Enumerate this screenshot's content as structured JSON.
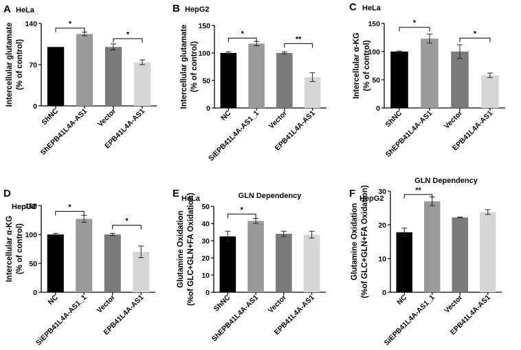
{
  "chart_data": [
    {
      "panel": "A",
      "cell": "HeLa",
      "type": "bar",
      "title": "",
      "ylabel": [
        "Intercellular glutamate",
        "(% of control)"
      ],
      "ylim": [
        0,
        140
      ],
      "yticks": [
        0,
        70,
        140
      ],
      "categories": [
        "ShNC",
        "ShEPB41L4A-AS1",
        "Vector",
        "EPB41L4A-AS1"
      ],
      "values": [
        100,
        122,
        100,
        74
      ],
      "errors": [
        0,
        3,
        5,
        4
      ],
      "colors": [
        "#000000",
        "#9a9a9a",
        "#7a7a7a",
        "#d6d6d6"
      ],
      "significance": [
        {
          "from": 0,
          "to": 1,
          "label": "*",
          "y": 132
        },
        {
          "from": 2,
          "to": 3,
          "label": "*",
          "y": 114
        }
      ]
    },
    {
      "panel": "B",
      "cell": "HepG2",
      "type": "bar",
      "title": "",
      "ylabel": [
        "Intercellular glutamate",
        "(% of control)"
      ],
      "ylim": [
        0,
        150
      ],
      "yticks": [
        0,
        50,
        100,
        150
      ],
      "categories": [
        "NC",
        "SiEPB41L4A-AS1_1",
        "Vector",
        "EPB41L4A-AS1"
      ],
      "values": [
        100,
        117,
        100,
        56
      ],
      "errors": [
        2,
        4,
        2,
        8
      ],
      "colors": [
        "#000000",
        "#9a9a9a",
        "#7a7a7a",
        "#d6d6d6"
      ],
      "significance": [
        {
          "from": 0,
          "to": 1,
          "label": "*",
          "y": 127
        },
        {
          "from": 2,
          "to": 3,
          "label": "**",
          "y": 117
        }
      ]
    },
    {
      "panel": "C",
      "cell": "HeLa",
      "type": "bar",
      "title": "",
      "ylabel": [
        "Intercellular α-KG",
        "(% of control)"
      ],
      "ylim": [
        0,
        150
      ],
      "yticks": [
        0,
        50,
        100,
        150
      ],
      "categories": [
        "ShNC",
        "ShEPB41L4A-AS1",
        "Vector",
        "EPB41L4A-AS1"
      ],
      "values": [
        100,
        123,
        100,
        58
      ],
      "errors": [
        1,
        8,
        12,
        4
      ],
      "colors": [
        "#000000",
        "#9a9a9a",
        "#7a7a7a",
        "#d6d6d6"
      ],
      "significance": [
        {
          "from": 0,
          "to": 1,
          "label": "*",
          "y": 143
        },
        {
          "from": 2,
          "to": 3,
          "label": "*",
          "y": 124
        }
      ]
    },
    {
      "panel": "D",
      "cell": "HepG2",
      "type": "bar",
      "title": "",
      "ylabel": [
        "Intercellular α-KG",
        "(% of control)"
      ],
      "ylim": [
        0,
        150
      ],
      "yticks": [
        0,
        50,
        100,
        150
      ],
      "categories": [
        "NC",
        "SiEPB41L4A-AS1_1",
        "Vector",
        "EPB41L4A-AS1"
      ],
      "values": [
        100,
        127,
        100,
        70
      ],
      "errors": [
        2,
        6,
        2,
        10
      ],
      "colors": [
        "#000000",
        "#9a9a9a",
        "#7a7a7a",
        "#d6d6d6"
      ],
      "significance": [
        {
          "from": 0,
          "to": 1,
          "label": "*",
          "y": 140
        },
        {
          "from": 2,
          "to": 3,
          "label": "*",
          "y": 116
        }
      ]
    },
    {
      "panel": "E",
      "cell": "HeLa",
      "type": "bar",
      "title": "GLN Dependency",
      "ylabel": [
        "Glutamine Oxidation",
        "(%of GLC+GLN+FA Oxidation)"
      ],
      "ylim": [
        0,
        50
      ],
      "yticks": [
        0,
        10,
        20,
        30,
        40,
        50
      ],
      "categories": [
        "ShNC",
        "ShEPB41L4A-AS1",
        "Vector",
        "EPB41L4A-AS1"
      ],
      "values": [
        32.5,
        41.5,
        34,
        33.5
      ],
      "errors": [
        3,
        1.5,
        1.5,
        2
      ],
      "colors": [
        "#000000",
        "#9a9a9a",
        "#7a7a7a",
        "#d6d6d6"
      ],
      "significance": [
        {
          "from": 0,
          "to": 1,
          "label": "*",
          "y": 45.5
        }
      ]
    },
    {
      "panel": "F",
      "cell": "HepG2",
      "type": "bar",
      "title": "GLN Dependency",
      "ylabel": [
        "Glutamine Oxidation",
        "(%of GLC+GLN+FA Oxidation)"
      ],
      "ylim": [
        0,
        30
      ],
      "yticks": [
        0,
        10,
        20,
        30
      ],
      "categories": [
        "NC",
        "SiEPB41L4A-AS1_1",
        "Vector",
        "EPB41L4A-AS1"
      ],
      "values": [
        17.8,
        27,
        22.2,
        23.8
      ],
      "errors": [
        1.2,
        1.3,
        0.1,
        0.7
      ],
      "colors": [
        "#000000",
        "#9a9a9a",
        "#7a7a7a",
        "#d6d6d6"
      ],
      "significance": [
        {
          "from": 0,
          "to": 1,
          "label": "**",
          "y": 29
        }
      ]
    }
  ]
}
